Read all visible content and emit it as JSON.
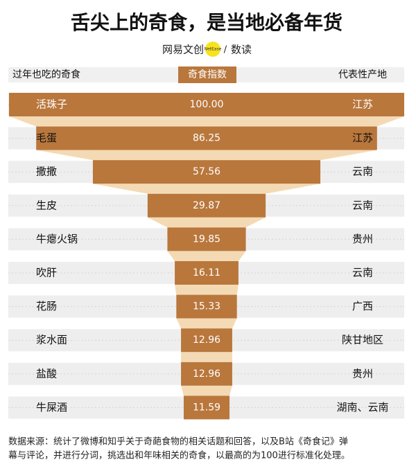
{
  "chart_data": {
    "type": "funnel-bar",
    "title": "舌尖上的奇食，是当地必备年货",
    "brand": {
      "name": "网易文创",
      "badge": "NetEase",
      "separator": "/",
      "column": "数读"
    },
    "headers": {
      "category": "过年也吃的奇食",
      "value": "奇食指数",
      "region": "代表性产地"
    },
    "categories": [
      "活珠子",
      "毛蛋",
      "撒撒",
      "生皮",
      "牛瘪火锅",
      "吹肝",
      "花肠",
      "浆水面",
      "盐酸",
      "牛屎酒"
    ],
    "values": [
      100,
      86.25,
      57.56,
      29.87,
      19.85,
      16.11,
      15.33,
      12.96,
      12.96,
      11.59
    ],
    "value_labels": [
      "100.00",
      "86.25",
      "57.56",
      "29.87",
      "19.85",
      "16.11",
      "15.33",
      "12.96",
      "12.96",
      "11.59"
    ],
    "regions": [
      "江苏",
      "江苏",
      "云南",
      "云南",
      "贵州",
      "云南",
      "广西",
      "陕甘地区",
      "贵州",
      "湖南、云南"
    ],
    "xlim": [
      0,
      100
    ],
    "color": "#b9773c",
    "connector_color": "#f4dab4",
    "note": [
      "数据来源：统计了微博和知乎关于奇葩食物的相关话题和回答，以及B站《奇食记》弹",
      "幕与评论，并进行分词，挑选出和年味相关的奇食，以最高的为100进行标准化处理。"
    ]
  }
}
